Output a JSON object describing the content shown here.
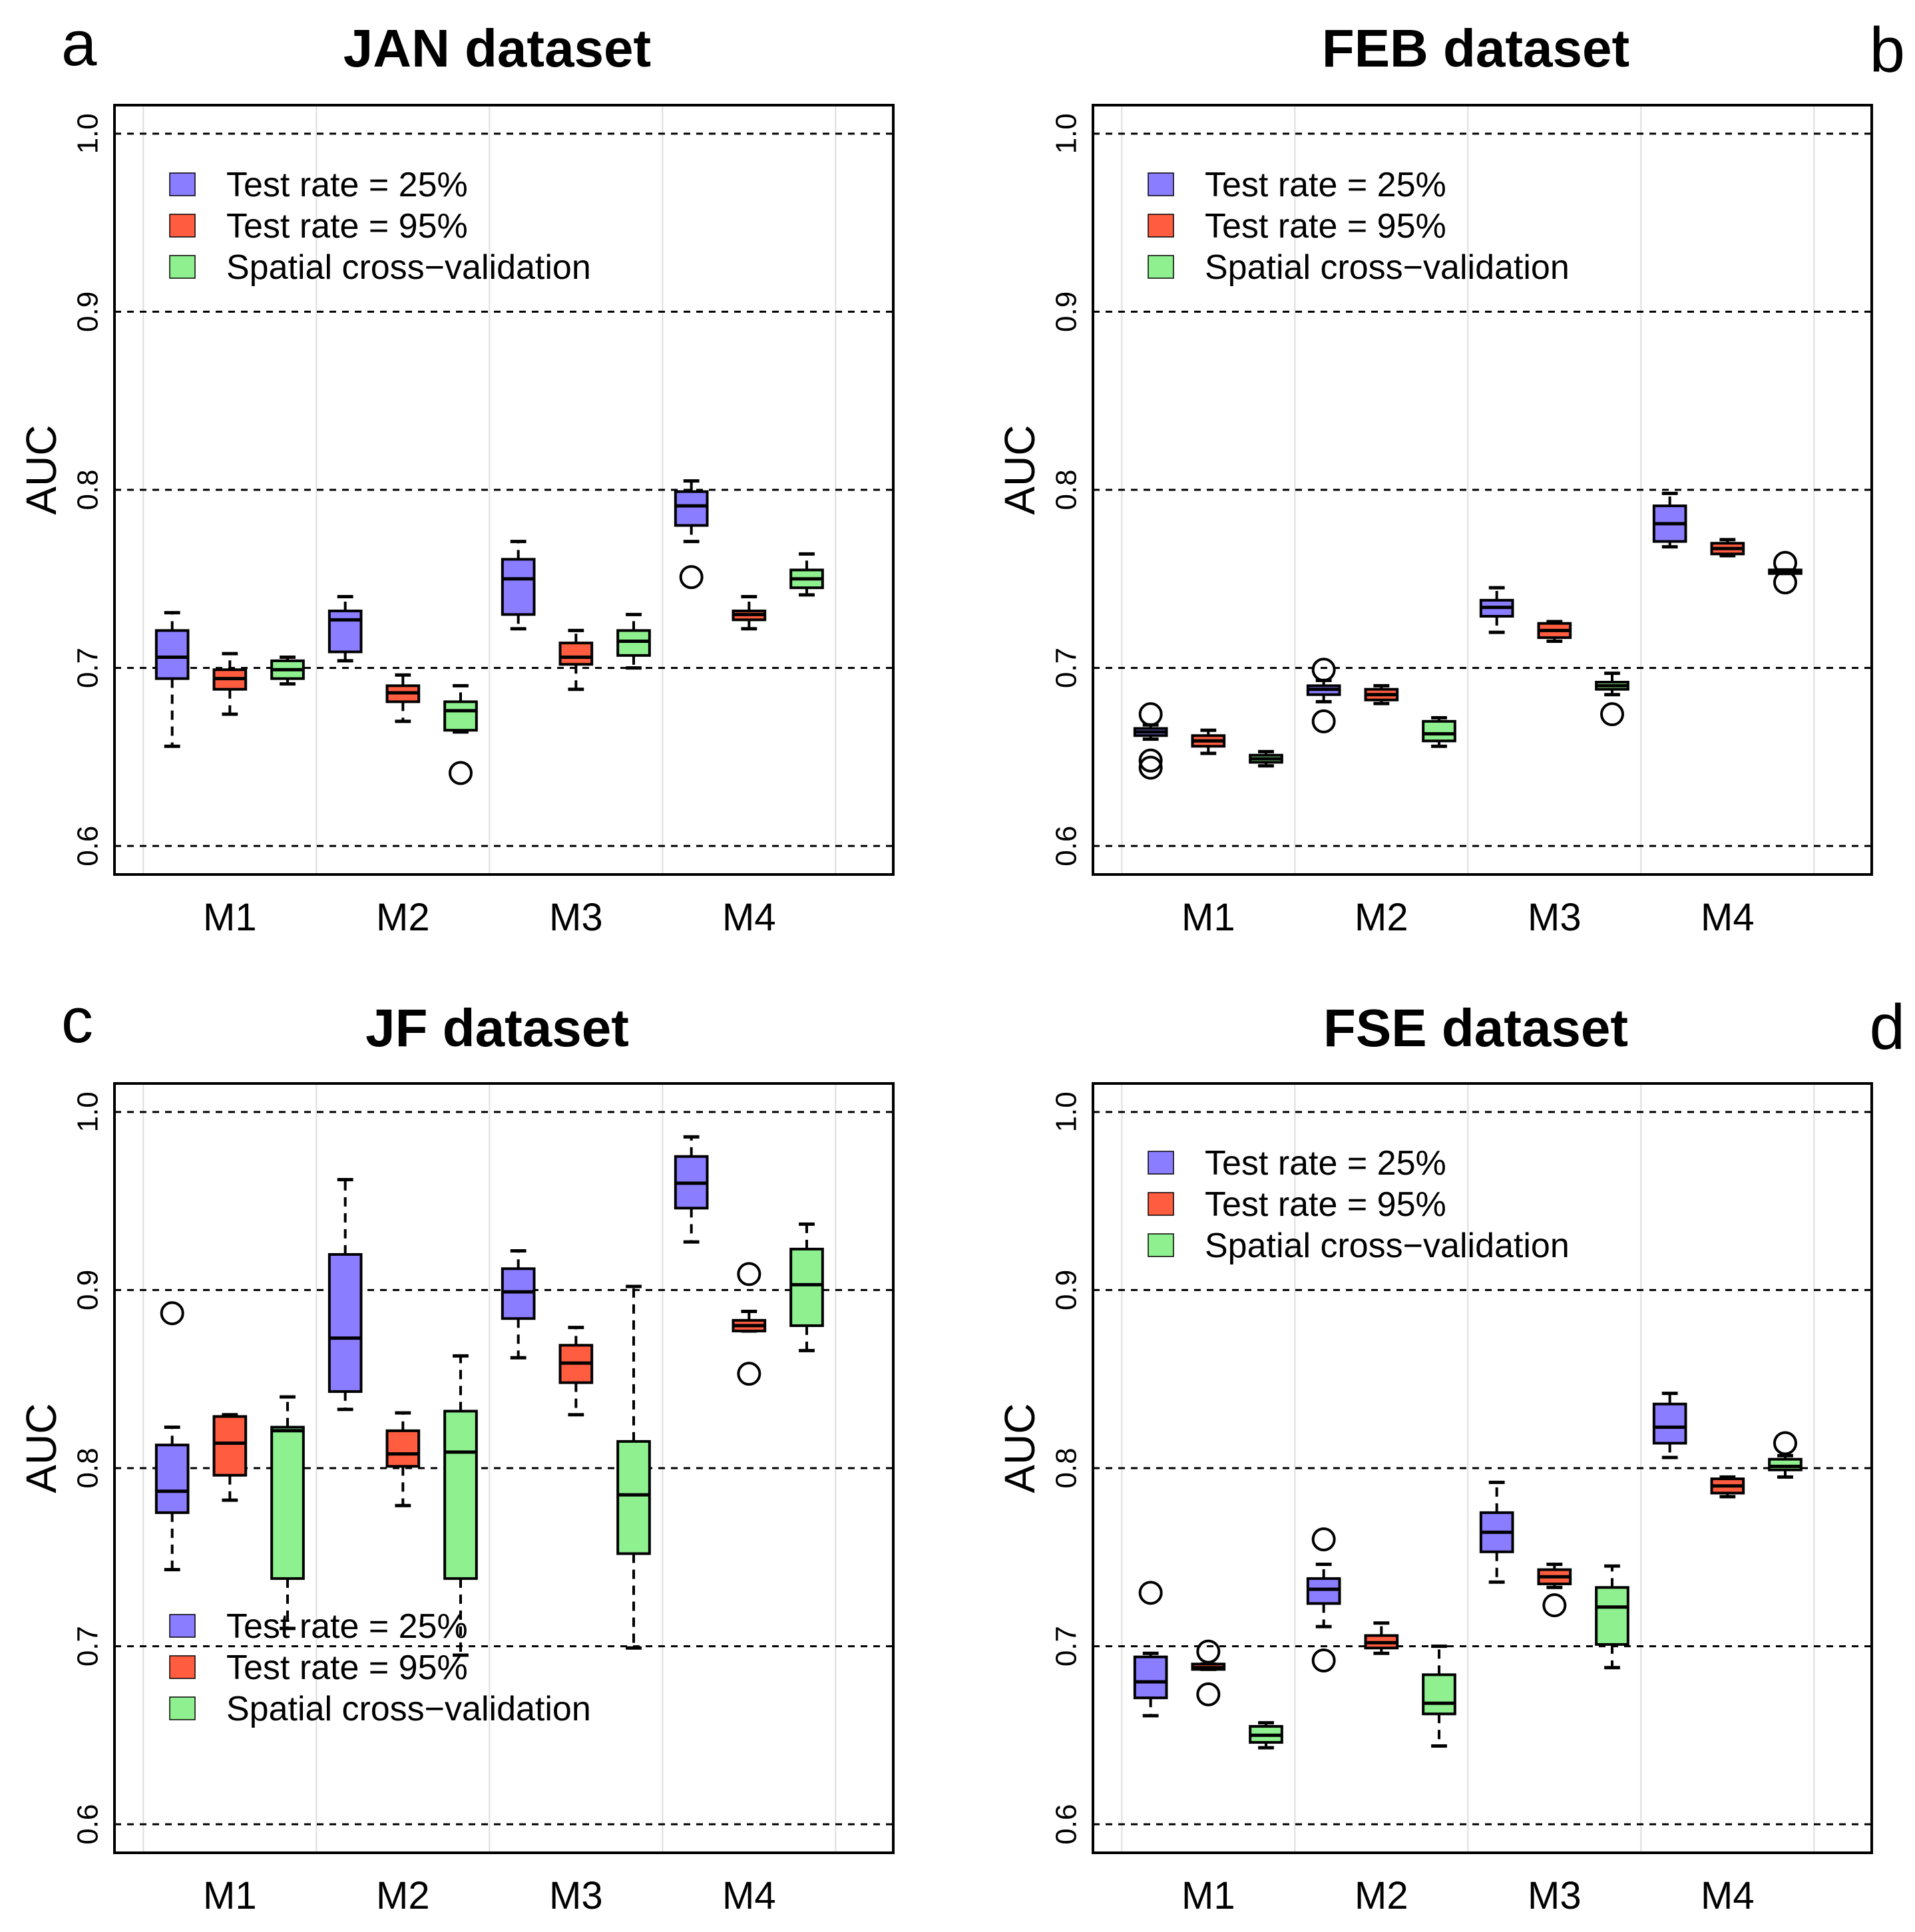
{
  "chart_data": [
    {
      "type": "box",
      "letter": "a",
      "title": "JAN dataset",
      "ylabel": "AUC",
      "ylim": [
        0.584,
        1.016
      ],
      "yticks": [
        "0.6",
        "0.7",
        "0.8",
        "0.9",
        "1.0"
      ],
      "categories": [
        "M1",
        "M2",
        "M3",
        "M4"
      ],
      "legend": {
        "position": "top-left",
        "entries": [
          "Test rate = 25%",
          "Test rate = 95%",
          "Spatial cross−validation"
        ]
      },
      "series": [
        {
          "name": "Test rate = 25%",
          "color": "#8a7dff",
          "boxes": [
            {
              "min": 0.656,
              "q1": 0.694,
              "median": 0.706,
              "q3": 0.721,
              "max": 0.731,
              "outliers": []
            },
            {
              "min": 0.704,
              "q1": 0.709,
              "median": 0.727,
              "q3": 0.732,
              "max": 0.74,
              "outliers": []
            },
            {
              "min": 0.722,
              "q1": 0.73,
              "median": 0.75,
              "q3": 0.761,
              "max": 0.771,
              "outliers": []
            },
            {
              "min": 0.771,
              "q1": 0.78,
              "median": 0.791,
              "q3": 0.799,
              "max": 0.805,
              "outliers": [
                0.751
              ]
            }
          ]
        },
        {
          "name": "Test rate = 95%",
          "color": "#ff5c40",
          "boxes": [
            {
              "min": 0.674,
              "q1": 0.688,
              "median": 0.694,
              "q3": 0.699,
              "max": 0.708,
              "outliers": []
            },
            {
              "min": 0.67,
              "q1": 0.681,
              "median": 0.686,
              "q3": 0.69,
              "max": 0.696,
              "outliers": []
            },
            {
              "min": 0.688,
              "q1": 0.702,
              "median": 0.706,
              "q3": 0.714,
              "max": 0.721,
              "outliers": []
            },
            {
              "min": 0.722,
              "q1": 0.727,
              "median": 0.73,
              "q3": 0.732,
              "max": 0.74,
              "outliers": []
            }
          ]
        },
        {
          "name": "Spatial cross−validation",
          "color": "#8ff08f",
          "boxes": [
            {
              "min": 0.691,
              "q1": 0.694,
              "median": 0.699,
              "q3": 0.704,
              "max": 0.706,
              "outliers": []
            },
            {
              "min": 0.664,
              "q1": 0.665,
              "median": 0.676,
              "q3": 0.681,
              "max": 0.69,
              "outliers": [
                0.641
              ]
            },
            {
              "min": 0.7,
              "q1": 0.707,
              "median": 0.715,
              "q3": 0.721,
              "max": 0.73,
              "outliers": []
            },
            {
              "min": 0.741,
              "q1": 0.745,
              "median": 0.75,
              "q3": 0.755,
              "max": 0.764,
              "outliers": []
            }
          ]
        }
      ]
    },
    {
      "type": "box",
      "letter": "b",
      "title": "FEB dataset",
      "ylabel": "AUC",
      "ylim": [
        0.584,
        1.016
      ],
      "yticks": [
        "0.6",
        "0.7",
        "0.8",
        "0.9",
        "1.0"
      ],
      "categories": [
        "M1",
        "M2",
        "M3",
        "M4"
      ],
      "legend": {
        "position": "top-left",
        "entries": [
          "Test rate = 25%",
          "Test rate = 95%",
          "Spatial cross−validation"
        ]
      },
      "series": [
        {
          "name": "Test rate = 25%",
          "color": "#8a7dff",
          "boxes": [
            {
              "min": 0.66,
              "q1": 0.662,
              "median": 0.664,
              "q3": 0.666,
              "max": 0.668,
              "outliers": [
                0.674,
                0.648,
                0.644
              ]
            },
            {
              "min": 0.681,
              "q1": 0.685,
              "median": 0.688,
              "q3": 0.69,
              "max": 0.693,
              "outliers": [
                0.699,
                0.67
              ]
            },
            {
              "min": 0.72,
              "q1": 0.729,
              "median": 0.734,
              "q3": 0.738,
              "max": 0.745,
              "outliers": []
            },
            {
              "min": 0.768,
              "q1": 0.771,
              "median": 0.781,
              "q3": 0.791,
              "max": 0.798,
              "outliers": []
            }
          ]
        },
        {
          "name": "Test rate = 95%",
          "color": "#ff5c40",
          "boxes": [
            {
              "min": 0.652,
              "q1": 0.656,
              "median": 0.659,
              "q3": 0.662,
              "max": 0.665,
              "outliers": []
            },
            {
              "min": 0.68,
              "q1": 0.682,
              "median": 0.685,
              "q3": 0.688,
              "max": 0.69,
              "outliers": []
            },
            {
              "min": 0.715,
              "q1": 0.717,
              "median": 0.721,
              "q3": 0.725,
              "max": 0.726,
              "outliers": []
            },
            {
              "min": 0.763,
              "q1": 0.764,
              "median": 0.767,
              "q3": 0.77,
              "max": 0.772,
              "outliers": []
            }
          ]
        },
        {
          "name": "Spatial cross−validation",
          "color": "#8ff08f",
          "boxes": [
            {
              "min": 0.645,
              "q1": 0.647,
              "median": 0.649,
              "q3": 0.651,
              "max": 0.653,
              "outliers": []
            },
            {
              "min": 0.656,
              "q1": 0.659,
              "median": 0.663,
              "q3": 0.67,
              "max": 0.672,
              "outliers": []
            },
            {
              "min": 0.685,
              "q1": 0.688,
              "median": 0.69,
              "q3": 0.692,
              "max": 0.697,
              "outliers": [
                0.674
              ]
            },
            {
              "min": 0.753,
              "q1": 0.753,
              "median": 0.754,
              "q3": 0.755,
              "max": 0.755,
              "outliers": [
                0.759,
                0.748
              ]
            }
          ]
        }
      ]
    },
    {
      "type": "box",
      "letter": "c",
      "title": "JF dataset",
      "ylabel": "AUC",
      "ylim": [
        0.584,
        1.016
      ],
      "yticks": [
        "0.6",
        "0.7",
        "0.8",
        "0.9",
        "1.0"
      ],
      "categories": [
        "M1",
        "M2",
        "M3",
        "M4"
      ],
      "legend": {
        "position": "bottom-left",
        "entries": [
          "Test rate = 25%",
          "Test rate = 95%",
          "Spatial cross−validation"
        ]
      },
      "series": [
        {
          "name": "Test rate = 25%",
          "color": "#8a7dff",
          "boxes": [
            {
              "min": 0.743,
              "q1": 0.775,
              "median": 0.787,
              "q3": 0.813,
              "max": 0.823,
              "outliers": [
                0.887
              ]
            },
            {
              "min": 0.833,
              "q1": 0.843,
              "median": 0.873,
              "q3": 0.92,
              "max": 0.962,
              "outliers": []
            },
            {
              "min": 0.862,
              "q1": 0.884,
              "median": 0.899,
              "q3": 0.912,
              "max": 0.922,
              "outliers": []
            },
            {
              "min": 0.927,
              "q1": 0.946,
              "median": 0.96,
              "q3": 0.975,
              "max": 0.986,
              "outliers": []
            }
          ]
        },
        {
          "name": "Test rate = 95%",
          "color": "#ff5c40",
          "boxes": [
            {
              "min": 0.782,
              "q1": 0.796,
              "median": 0.814,
              "q3": 0.829,
              "max": 0.83,
              "outliers": []
            },
            {
              "min": 0.779,
              "q1": 0.801,
              "median": 0.808,
              "q3": 0.821,
              "max": 0.831,
              "outliers": []
            },
            {
              "min": 0.83,
              "q1": 0.848,
              "median": 0.859,
              "q3": 0.869,
              "max": 0.879,
              "outliers": []
            },
            {
              "min": 0.877,
              "q1": 0.877,
              "median": 0.88,
              "q3": 0.883,
              "max": 0.888,
              "outliers": [
                0.909,
                0.853
              ]
            }
          ]
        },
        {
          "name": "Spatial cross−validation",
          "color": "#8ff08f",
          "boxes": [
            {
              "min": 0.71,
              "q1": 0.738,
              "median": 0.821,
              "q3": 0.823,
              "max": 0.84,
              "outliers": []
            },
            {
              "min": 0.695,
              "q1": 0.738,
              "median": 0.809,
              "q3": 0.832,
              "max": 0.863,
              "outliers": []
            },
            {
              "min": 0.699,
              "q1": 0.752,
              "median": 0.785,
              "q3": 0.815,
              "max": 0.902,
              "outliers": []
            },
            {
              "min": 0.866,
              "q1": 0.88,
              "median": 0.903,
              "q3": 0.923,
              "max": 0.937,
              "outliers": []
            }
          ]
        }
      ]
    },
    {
      "type": "box",
      "letter": "d",
      "title": "FSE dataset",
      "ylabel": "AUC",
      "ylim": [
        0.584,
        1.016
      ],
      "yticks": [
        "0.6",
        "0.7",
        "0.8",
        "0.9",
        "1.0"
      ],
      "categories": [
        "M1",
        "M2",
        "M3",
        "M4"
      ],
      "legend": {
        "position": "top-left",
        "entries": [
          "Test rate = 25%",
          "Test rate = 95%",
          "Spatial cross−validation"
        ]
      },
      "series": [
        {
          "name": "Test rate = 25%",
          "color": "#8a7dff",
          "boxes": [
            {
              "min": 0.661,
              "q1": 0.671,
              "median": 0.68,
              "q3": 0.694,
              "max": 0.696,
              "outliers": [
                0.73
              ]
            },
            {
              "min": 0.711,
              "q1": 0.724,
              "median": 0.732,
              "q3": 0.738,
              "max": 0.746,
              "outliers": [
                0.76,
                0.692
              ]
            },
            {
              "min": 0.736,
              "q1": 0.753,
              "median": 0.764,
              "q3": 0.775,
              "max": 0.792,
              "outliers": []
            },
            {
              "min": 0.806,
              "q1": 0.814,
              "median": 0.823,
              "q3": 0.836,
              "max": 0.842,
              "outliers": []
            }
          ]
        },
        {
          "name": "Test rate = 95%",
          "color": "#ff5c40",
          "boxes": [
            {
              "min": 0.687,
              "q1": 0.687,
              "median": 0.688,
              "q3": 0.69,
              "max": 0.69,
              "outliers": [
                0.697,
                0.673
              ]
            },
            {
              "min": 0.696,
              "q1": 0.699,
              "median": 0.702,
              "q3": 0.706,
              "max": 0.713,
              "outliers": []
            },
            {
              "min": 0.733,
              "q1": 0.735,
              "median": 0.739,
              "q3": 0.743,
              "max": 0.746,
              "outliers": [
                0.723
              ]
            },
            {
              "min": 0.784,
              "q1": 0.786,
              "median": 0.79,
              "q3": 0.794,
              "max": 0.795,
              "outliers": []
            }
          ]
        },
        {
          "name": "Spatial cross−validation",
          "color": "#8ff08f",
          "boxes": [
            {
              "min": 0.643,
              "q1": 0.646,
              "median": 0.65,
              "q3": 0.655,
              "max": 0.657,
              "outliers": []
            },
            {
              "min": 0.644,
              "q1": 0.662,
              "median": 0.668,
              "q3": 0.684,
              "max": 0.7,
              "outliers": []
            },
            {
              "min": 0.688,
              "q1": 0.701,
              "median": 0.722,
              "q3": 0.733,
              "max": 0.745,
              "outliers": []
            },
            {
              "min": 0.795,
              "q1": 0.799,
              "median": 0.801,
              "q3": 0.805,
              "max": 0.807,
              "outliers": [
                0.814
              ]
            }
          ]
        }
      ]
    }
  ]
}
